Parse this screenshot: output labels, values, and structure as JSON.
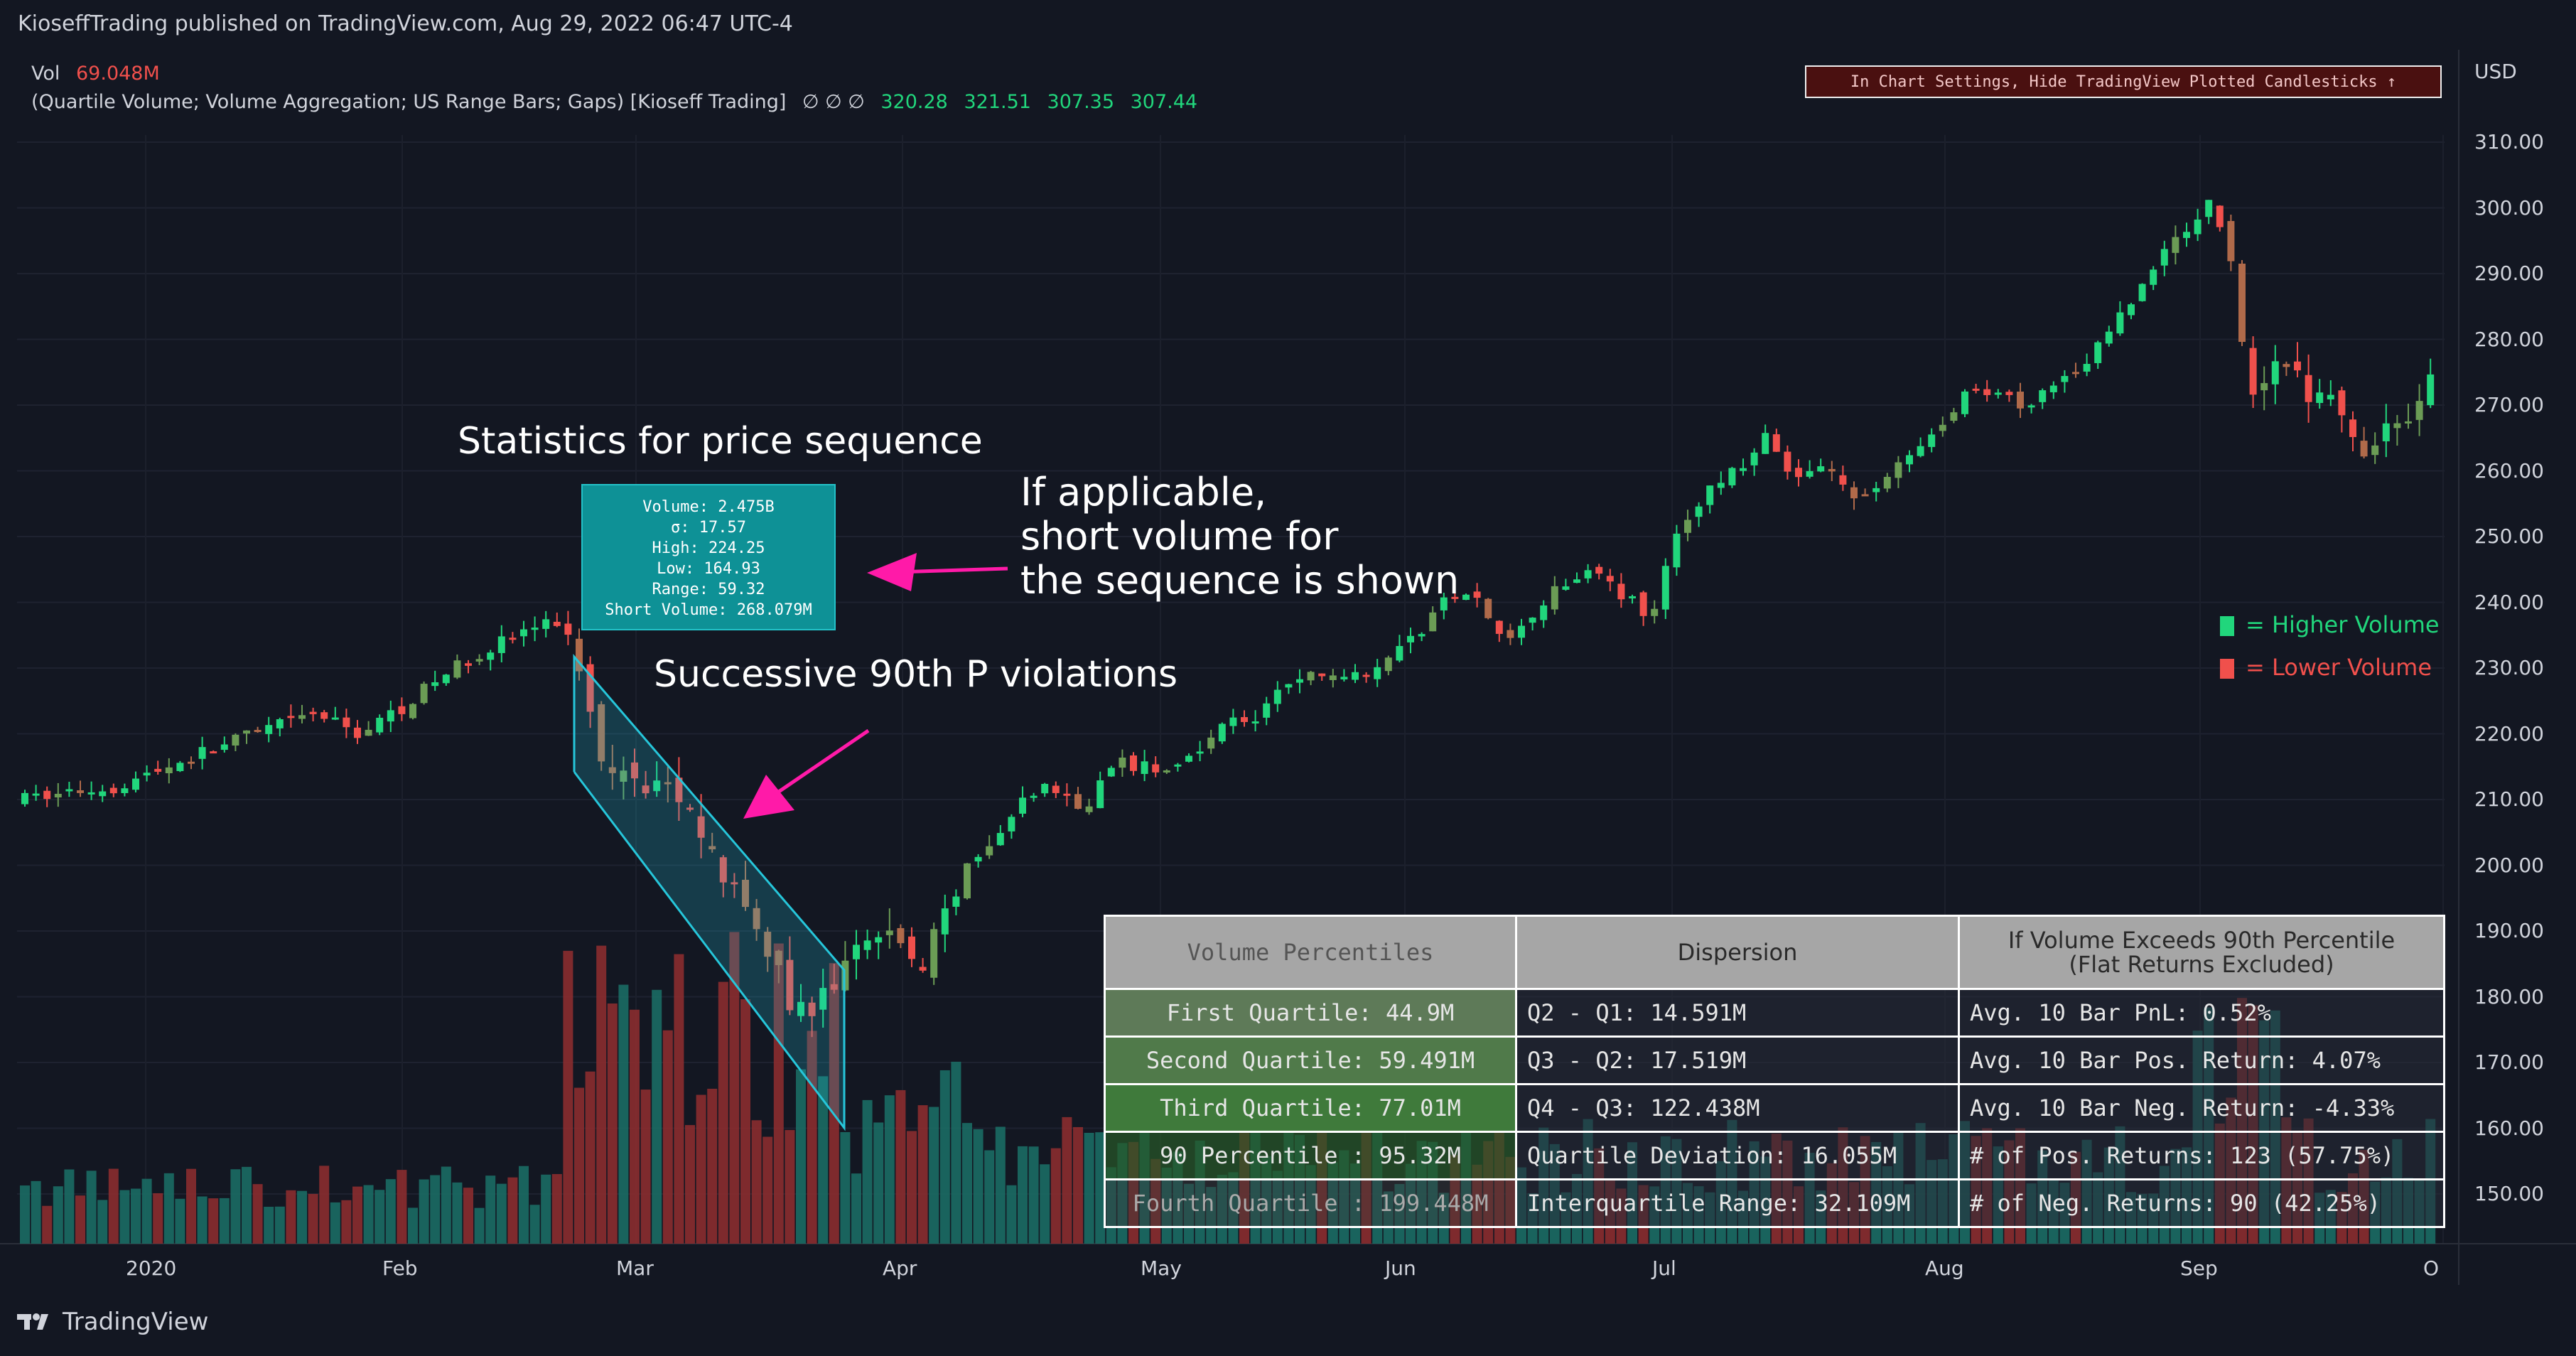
{
  "header": {
    "published": "KioseffTrading published on TradingView.com, Aug 29, 2022 06:47 UTC-4"
  },
  "legend": {
    "vol_label": "Vol",
    "vol_value": "69.048M",
    "indicator_name": "(Quartile Volume; Volume Aggregation; US Range Bars; Gaps) [Kioseff Trading]",
    "indicator_flags": "∅ ∅ ∅",
    "ohlc": [
      "320.28",
      "321.51",
      "307.35",
      "307.44"
    ]
  },
  "banner": {
    "text": "In Chart Settings, Hide TradingView Plotted Candlesticks ↑"
  },
  "currency": "USD",
  "colors": {
    "up": "#21d67c",
    "down": "#f0504c",
    "vol_up": "#1b6b64",
    "vol_down": "#8b2c2f",
    "teal_box": "#0e9196"
  },
  "stats_box": {
    "lines": [
      "Volume: 2.475B",
      "σ: 17.57",
      "High: 224.25",
      "Low: 164.93",
      "Range: 59.32",
      "Short Volume: 268.079M"
    ]
  },
  "annotations": {
    "stats_title": "Statistics for price sequence",
    "short_volume": [
      "If applicable,",
      "short volume for",
      "the sequence is shown"
    ],
    "violations": "Successive 90th P violations"
  },
  "key": {
    "higher": "= Higher Volume",
    "lower": "= Lower Volume"
  },
  "table": {
    "headers": [
      "Volume Percentiles",
      "Dispersion",
      "If Volume Exceeds 90th Percentile",
      "(Flat Returns Excluded)"
    ],
    "rows": [
      {
        "q": "First Quartile: 44.9M",
        "d": "Q2 - Q1: 14.591M",
        "r": "Avg. 10 Bar PnL: 0.52%"
      },
      {
        "q": "Second Quartile: 59.491M",
        "d": "Q3 - Q2: 17.519M",
        "r": "Avg. 10 Bar Pos. Return: 4.07%"
      },
      {
        "q": "Third Quartile: 77.01M",
        "d": "Q4 - Q3: 122.438M",
        "r": "Avg. 10 Bar Neg. Return: -4.33%"
      },
      {
        "q": "90 Percentile : 95.32M",
        "d": "Quartile Deviation: 16.055M",
        "r": "# of Pos. Returns: 123 (57.75%)"
      },
      {
        "q": "Fourth Quartile : 199.448M",
        "d": "Interquartile Range: 32.109M",
        "r": "# of Neg. Returns: 90 (42.25%)"
      }
    ]
  },
  "price_axis": {
    "ticks": [
      "310.00",
      "300.00",
      "290.00",
      "280.00",
      "270.00",
      "260.00",
      "250.00",
      "240.00",
      "230.00",
      "220.00",
      "210.00",
      "200.00",
      "190.00",
      "180.00",
      "170.00",
      "160.00",
      "150.00"
    ]
  },
  "time_axis": {
    "ticks": [
      "2020",
      "Feb",
      "Mar",
      "Apr",
      "May",
      "Jun",
      "Jul",
      "Aug",
      "Sep",
      "O"
    ]
  },
  "footer": {
    "brand": "TradingView"
  }
}
